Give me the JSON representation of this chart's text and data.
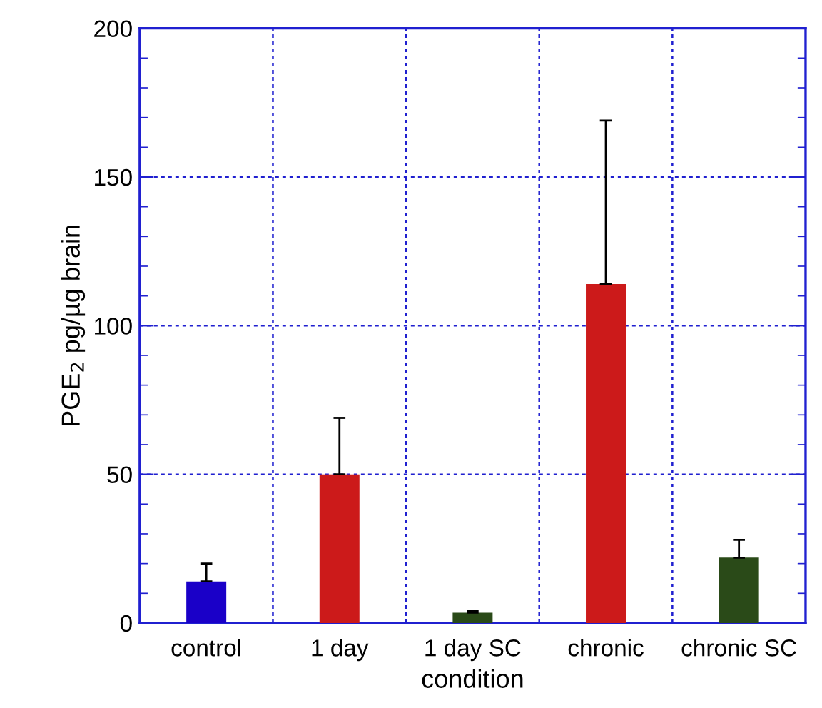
{
  "chart_data": {
    "type": "bar",
    "xlabel": "condition",
    "ylabel": "PGE$_{2}$ pg/µg brain",
    "categories": [
      "control",
      "1 day",
      "1 day SC",
      "chronic",
      "chronic SC"
    ],
    "values": [
      14,
      50,
      3.5,
      114,
      22
    ],
    "colors": [
      "#1a00c8",
      "#cc1a1a",
      "#2a4a18",
      "#cc1a1a",
      "#2a4a18"
    ],
    "errors": [
      [
        14,
        20
      ],
      [
        50,
        69
      ],
      [
        3.5,
        4
      ],
      [
        114,
        169
      ],
      [
        22,
        28
      ]
    ],
    "ylim": [
      0,
      200
    ],
    "yticks": [
      0,
      {
        "value": 10,
        "label": null
      },
      {
        "value": 20,
        "label": null
      },
      {
        "value": 30,
        "label": null
      },
      {
        "value": 40,
        "label": null
      },
      50,
      {
        "value": 60,
        "label": null
      },
      {
        "value": 70,
        "label": null
      },
      {
        "value": 80,
        "label": null
      },
      {
        "value": 90,
        "label": null
      },
      100,
      {
        "value": 110,
        "label": null
      },
      {
        "value": 120,
        "label": null
      },
      {
        "value": 130,
        "label": null
      },
      {
        "value": 140,
        "label": null
      },
      150,
      {
        "value": 160,
        "label": null
      },
      {
        "value": 170,
        "label": null
      },
      {
        "value": 180,
        "label": null
      },
      {
        "value": 190,
        "label": null
      },
      200
    ],
    "grid": true
  }
}
